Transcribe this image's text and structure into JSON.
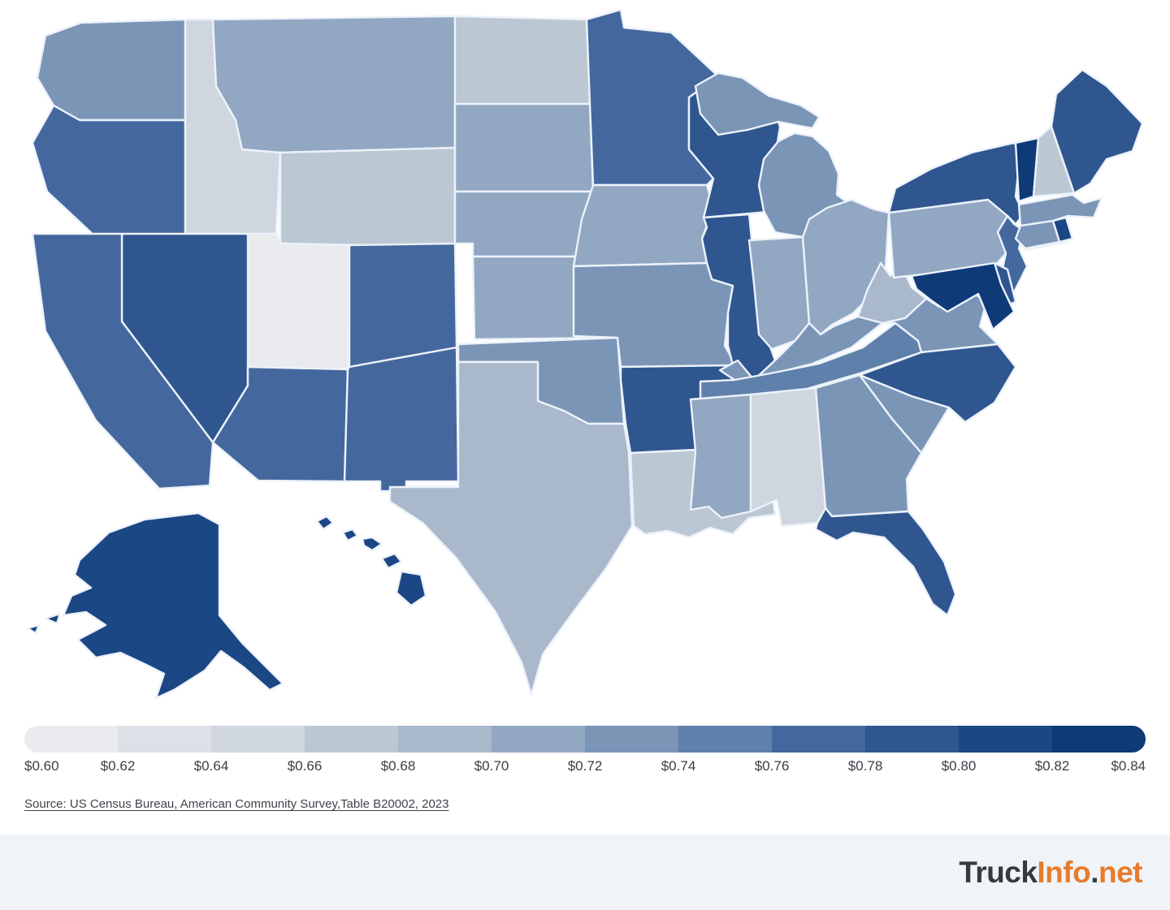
{
  "legend": {
    "labels": [
      "$0.60",
      "$0.62",
      "$0.64",
      "$0.66",
      "$0.68",
      "$0.70",
      "$0.72",
      "$0.74",
      "$0.76",
      "$0.78",
      "$0.80",
      "$0.82",
      "$0.84"
    ],
    "colors": [
      "#e9ebee",
      "#dde1e7",
      "#cfd6df",
      "#bcc7d4",
      "#a9b8cb",
      "#92a7c2",
      "#7b95b7",
      "#5f80aa",
      "#44689d",
      "#2f568f",
      "#1c4785",
      "#0e3a77"
    ]
  },
  "source": {
    "text": "Source: US Census Bureau, American Community Survey,Table B20002, 2023"
  },
  "footer": {
    "logo": {
      "truck": "Truck",
      "info": "Info",
      "dot": ".",
      "net": "net"
    },
    "colors": {
      "dark": "#343a40",
      "orange": "#e87b2a",
      "background": "#f0f4f8"
    }
  },
  "chart_data": {
    "type": "heatmap",
    "subtype": "us-state-choropleth",
    "unit": "dollars",
    "value_format": "$0.00",
    "value_range": [
      0.6,
      0.84
    ],
    "bin_size": 0.02,
    "legend_position": "bottom",
    "legend_ticks": [
      0.6,
      0.62,
      0.64,
      0.66,
      0.68,
      0.7,
      0.72,
      0.74,
      0.76,
      0.78,
      0.8,
      0.82,
      0.84
    ],
    "states": [
      {
        "code": "WA",
        "name": "Washington",
        "value": 0.73
      },
      {
        "code": "OR",
        "name": "Oregon",
        "value": 0.77
      },
      {
        "code": "CA",
        "name": "California",
        "value": 0.77
      },
      {
        "code": "NV",
        "name": "Nevada",
        "value": 0.79
      },
      {
        "code": "ID",
        "name": "Idaho",
        "value": 0.65
      },
      {
        "code": "MT",
        "name": "Montana",
        "value": 0.71
      },
      {
        "code": "WY",
        "name": "Wyoming",
        "value": 0.66
      },
      {
        "code": "UT",
        "name": "Utah",
        "value": 0.61
      },
      {
        "code": "CO",
        "name": "Colorado",
        "value": 0.76
      },
      {
        "code": "AZ",
        "name": "Arizona",
        "value": 0.77
      },
      {
        "code": "NM",
        "name": "New Mexico",
        "value": 0.76
      },
      {
        "code": "ND",
        "name": "North Dakota",
        "value": 0.66
      },
      {
        "code": "SD",
        "name": "South Dakota",
        "value": 0.71
      },
      {
        "code": "NE",
        "name": "Nebraska",
        "value": 0.71
      },
      {
        "code": "KS",
        "name": "Kansas",
        "value": 0.7
      },
      {
        "code": "OK",
        "name": "Oklahoma",
        "value": 0.72
      },
      {
        "code": "TX",
        "name": "Texas",
        "value": 0.69
      },
      {
        "code": "MN",
        "name": "Minnesota",
        "value": 0.76
      },
      {
        "code": "IA",
        "name": "Iowa",
        "value": 0.71
      },
      {
        "code": "MO",
        "name": "Missouri",
        "value": 0.72
      },
      {
        "code": "AR",
        "name": "Arkansas",
        "value": 0.78
      },
      {
        "code": "LA",
        "name": "Louisiana",
        "value": 0.67
      },
      {
        "code": "WI",
        "name": "Wisconsin",
        "value": 0.78
      },
      {
        "code": "IL",
        "name": "Illinois",
        "value": 0.78
      },
      {
        "code": "MI",
        "name": "Michigan",
        "value": 0.72
      },
      {
        "code": "IN",
        "name": "Indiana",
        "value": 0.7
      },
      {
        "code": "OH",
        "name": "Ohio",
        "value": 0.71
      },
      {
        "code": "KY",
        "name": "Kentucky",
        "value": 0.72
      },
      {
        "code": "TN",
        "name": "Tennessee",
        "value": 0.75
      },
      {
        "code": "MS",
        "name": "Mississippi",
        "value": 0.7
      },
      {
        "code": "AL",
        "name": "Alabama",
        "value": 0.65
      },
      {
        "code": "GA",
        "name": "Georgia",
        "value": 0.72
      },
      {
        "code": "SC",
        "name": "South Carolina",
        "value": 0.72
      },
      {
        "code": "NC",
        "name": "North Carolina",
        "value": 0.78
      },
      {
        "code": "VA",
        "name": "Virginia",
        "value": 0.73
      },
      {
        "code": "WV",
        "name": "West Virginia",
        "value": 0.69
      },
      {
        "code": "FL",
        "name": "Florida",
        "value": 0.78
      },
      {
        "code": "PA",
        "name": "Pennsylvania",
        "value": 0.7
      },
      {
        "code": "NY",
        "name": "New York",
        "value": 0.78
      },
      {
        "code": "NJ",
        "name": "New Jersey",
        "value": 0.76
      },
      {
        "code": "DE",
        "name": "Delaware",
        "value": 0.78
      },
      {
        "code": "MD",
        "name": "Maryland",
        "value": 0.83
      },
      {
        "code": "VT",
        "name": "Vermont",
        "value": 0.83
      },
      {
        "code": "NH",
        "name": "New Hampshire",
        "value": 0.67
      },
      {
        "code": "MA",
        "name": "Massachusetts",
        "value": 0.72
      },
      {
        "code": "CT",
        "name": "Connecticut",
        "value": 0.72
      },
      {
        "code": "RI",
        "name": "Rhode Island",
        "value": 0.81
      },
      {
        "code": "ME",
        "name": "Maine",
        "value": 0.78
      },
      {
        "code": "AK",
        "name": "Alaska",
        "value": 0.8
      },
      {
        "code": "HI",
        "name": "Hawaii",
        "value": 0.8
      }
    ]
  }
}
